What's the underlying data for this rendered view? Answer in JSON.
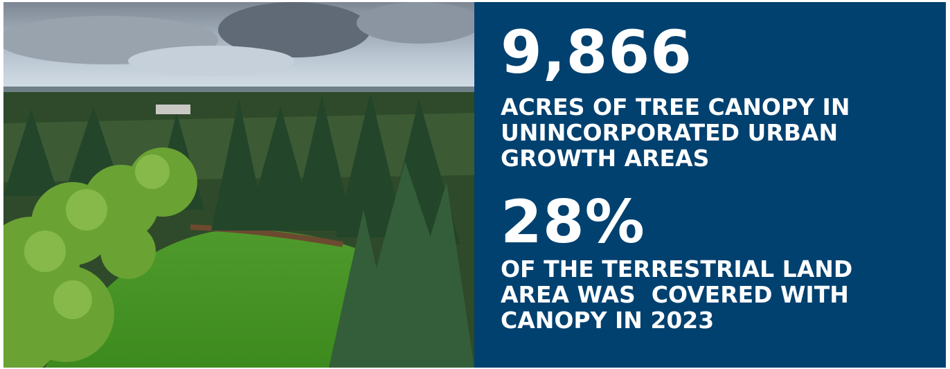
{
  "stats": [
    {
      "value": "9,866",
      "label_lines": [
        "ACRES OF TREE CANOPY IN",
        "UNINCORPORATED URBAN",
        "GROWTH AREAS"
      ]
    },
    {
      "value": "28%",
      "label_lines": [
        "OF THE TERRESTRIAL LAND",
        "AREA WAS  COVERED WITH",
        "CANOPY IN 2023"
      ]
    }
  ]
}
